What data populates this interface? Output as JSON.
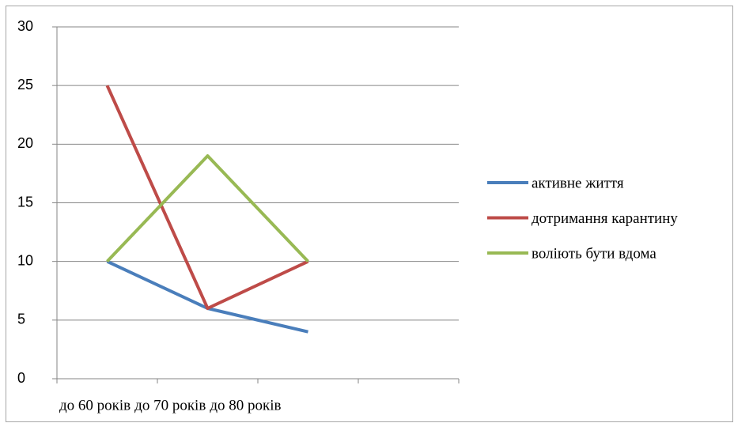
{
  "chart_data": {
    "type": "line",
    "categories": [
      "до 60 років",
      "до 70 років",
      "до 80 років",
      null
    ],
    "series": [
      {
        "name": "активне життя",
        "color": "#4a7ebb",
        "values": [
          10,
          6,
          4,
          null
        ]
      },
      {
        "name": "дотримання карантину",
        "color": "#be4b48",
        "values": [
          25,
          6,
          10,
          null
        ]
      },
      {
        "name": "воліють бути вдома",
        "color": "#98b954",
        "values": [
          10,
          19,
          10,
          null
        ]
      }
    ],
    "ylim": [
      0,
      30
    ],
    "yticks": [
      0,
      5,
      10,
      15,
      20,
      25,
      30
    ],
    "grid": true,
    "legend": "right"
  }
}
